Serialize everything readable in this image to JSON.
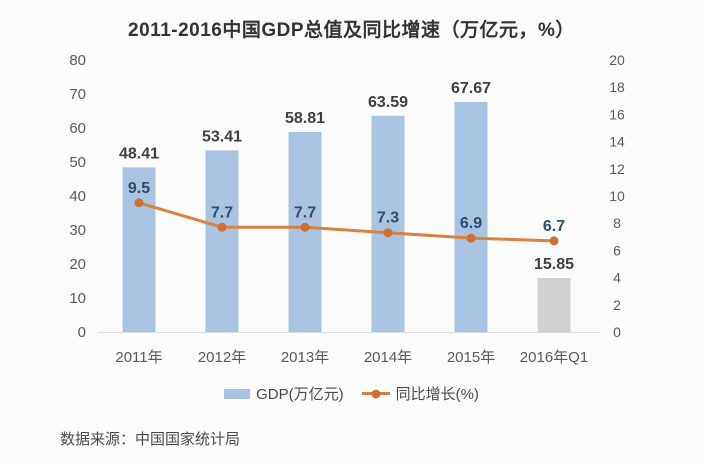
{
  "title": "2011-2016中国GDP总值及同比增速（万亿元，%）",
  "source": "数据来源：中国国家统计局",
  "legend": {
    "gdp_label": "GDP(万亿元)",
    "growth_label": "同比增长(%)"
  },
  "colors": {
    "bar_blue": "#a8c4e2",
    "bar_gray": "#d0d0d2",
    "line_orange": "#d9813e",
    "marker_orange": "#cf7033",
    "gdp_label_text": "#3f3f3f",
    "growth_label_text": "#2f4d6f",
    "axis_text": "#595959",
    "axis_line": "#dcdcdc",
    "title_text": "#333333",
    "legend_text": "#4a4a4a",
    "source_text": "#4a4a4a",
    "background": "#fbfbfb"
  },
  "chart_data": {
    "type": "combo",
    "title": "2011-2016中国GDP总值及同比增速（万亿元，%）",
    "categories": [
      "2011年",
      "2012年",
      "2013年",
      "2014年",
      "2015年",
      "2016年Q1"
    ],
    "series": [
      {
        "name": "GDP(万亿元)",
        "type": "bar",
        "axis": "left",
        "values": [
          48.41,
          53.41,
          58.81,
          63.59,
          67.67,
          15.85
        ]
      },
      {
        "name": "同比增长(%)",
        "type": "line",
        "axis": "right",
        "values": [
          9.5,
          7.7,
          7.7,
          7.3,
          6.9,
          6.7
        ]
      }
    ],
    "left_axis": {
      "min": 0,
      "max": 80,
      "step": 10
    },
    "right_axis": {
      "min": 0,
      "max": 20,
      "step": 2
    },
    "last_bar_gray": true,
    "grid": false,
    "legend_position": "bottom"
  }
}
